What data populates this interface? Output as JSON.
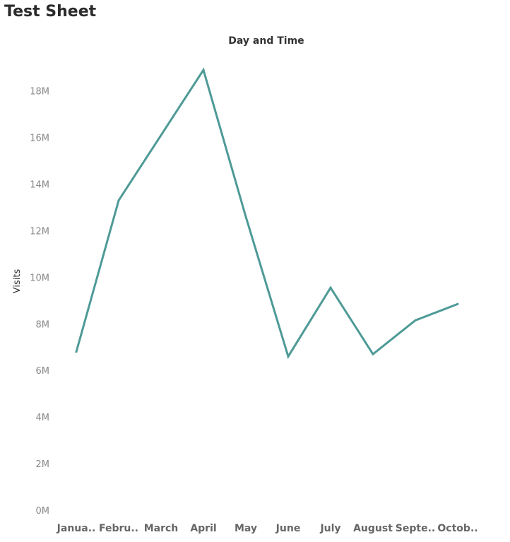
{
  "sheet": {
    "title": "Test Sheet"
  },
  "chart_data": {
    "type": "line",
    "title": "Day and Time",
    "xlabel": "",
    "ylabel": "Visits",
    "categories": [
      "Janua..",
      "Febru..",
      "March",
      "April",
      "May",
      "June",
      "July",
      "August",
      "Septe..",
      "Octob.."
    ],
    "series": [
      {
        "values": [
          6800000,
          13300000,
          16100000,
          18900000,
          12600000,
          6600000,
          9550000,
          6700000,
          8150000,
          8850000
        ],
        "color": "#4e9a97"
      }
    ],
    "ylim": [
      0,
      18900000
    ],
    "y_ticks": [
      {
        "value": 0,
        "label": "0M"
      },
      {
        "value": 2000000,
        "label": "2M"
      },
      {
        "value": 4000000,
        "label": "4M"
      },
      {
        "value": 6000000,
        "label": "6M"
      },
      {
        "value": 8000000,
        "label": "8M"
      },
      {
        "value": 10000000,
        "label": "10M"
      },
      {
        "value": 12000000,
        "label": "12M"
      },
      {
        "value": 14000000,
        "label": "14M"
      },
      {
        "value": 16000000,
        "label": "16M"
      },
      {
        "value": 18000000,
        "label": "18M"
      }
    ],
    "grid": false,
    "legend": "none"
  }
}
